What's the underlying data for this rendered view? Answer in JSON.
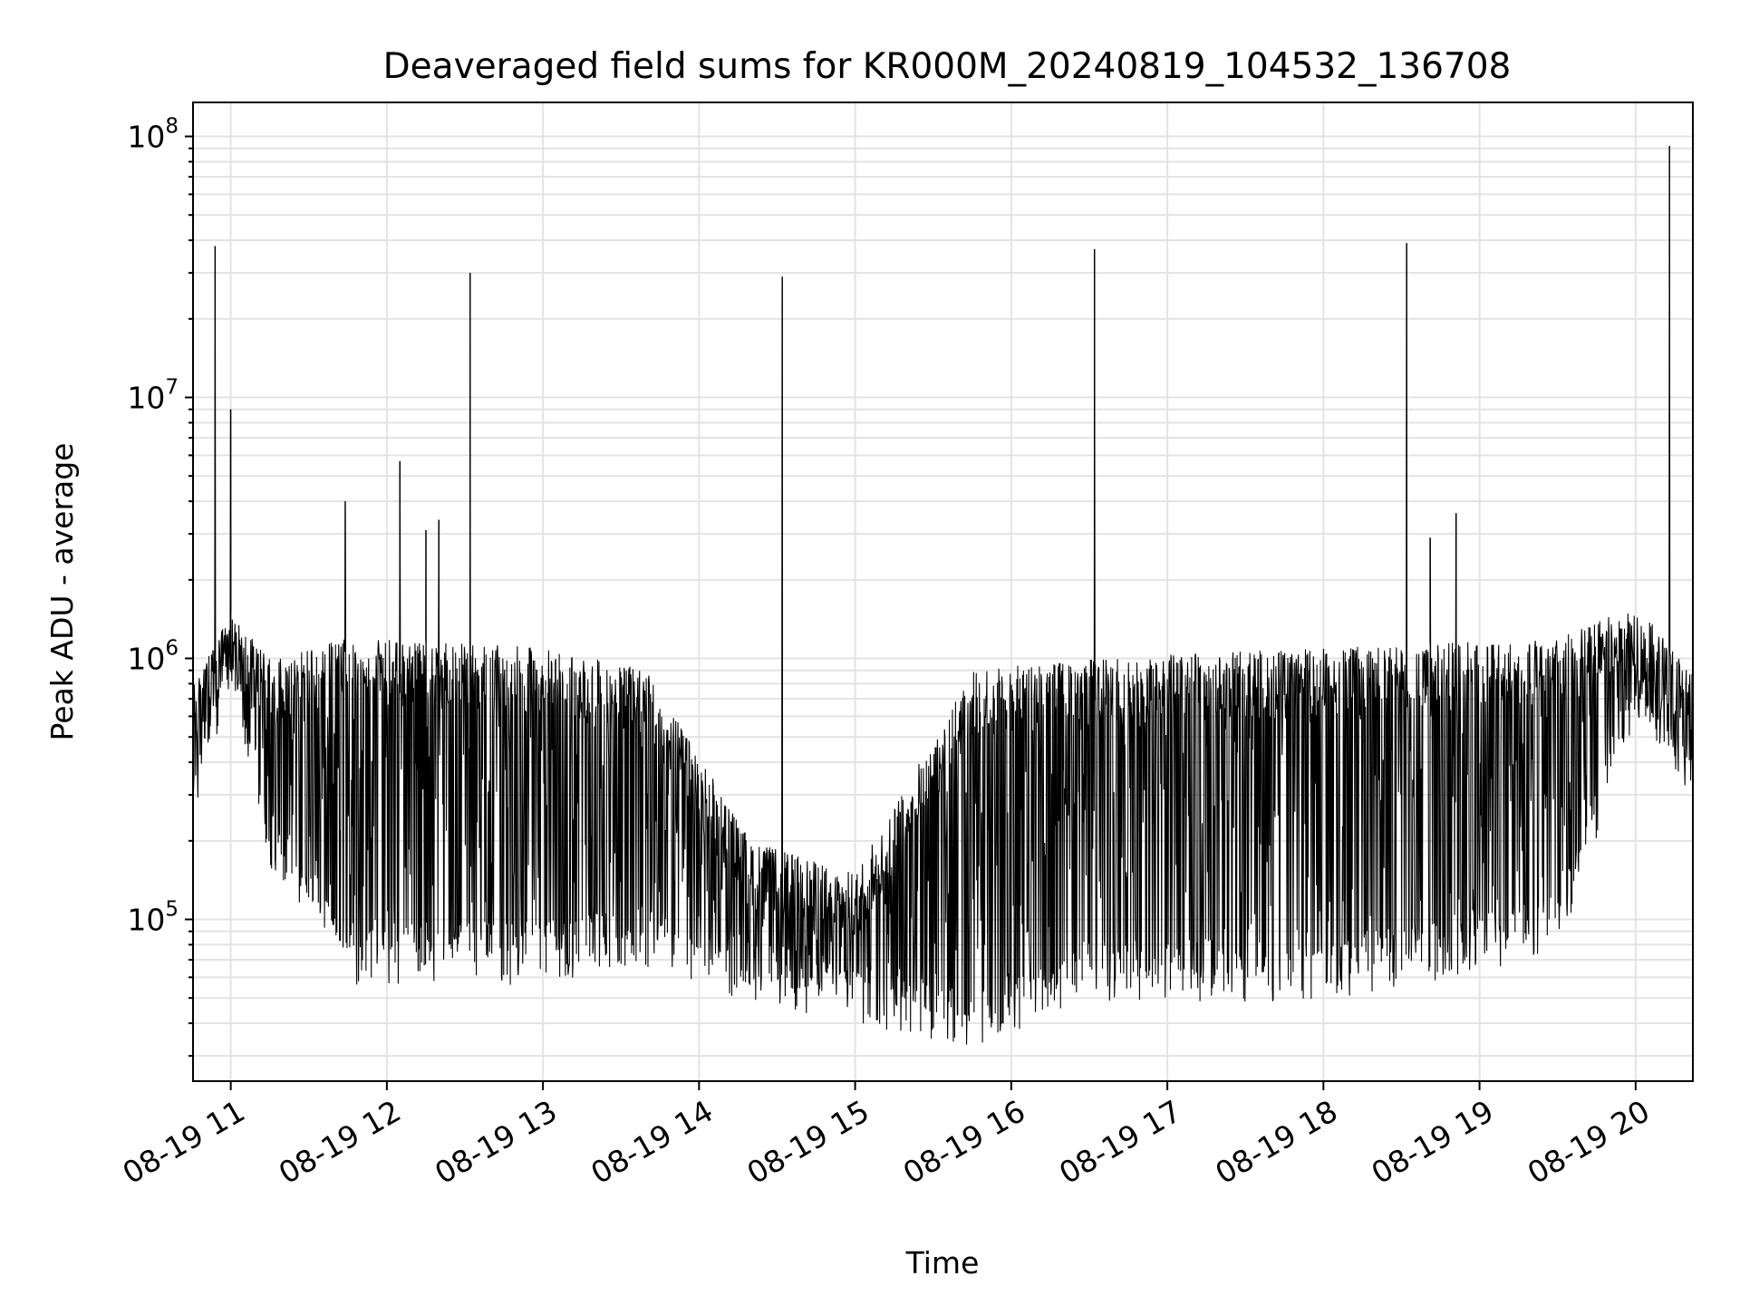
{
  "chart_data": {
    "type": "line",
    "title": "Deaveraged field sums for KR000M_20240819_104532_136708",
    "xlabel": "Time",
    "ylabel": "Peak ADU - average",
    "yscale": "log",
    "ylim": [
      24000,
      135000000
    ],
    "xlim": [
      "2024-08-19 10:45:32",
      "2024-08-19 20:22:00"
    ],
    "grid": true,
    "line_color": "#000000",
    "x_ticks": [
      "08-19 11",
      "08-19 12",
      "08-19 13",
      "08-19 14",
      "08-19 15",
      "08-19 16",
      "08-19 17",
      "08-19 18",
      "08-19 19",
      "08-19 20"
    ],
    "y_ticks": [
      {
        "value": 100000,
        "base": "10",
        "exp": "5"
      },
      {
        "value": 1000000,
        "base": "10",
        "exp": "6"
      },
      {
        "value": 10000000,
        "base": "10",
        "exp": "7"
      },
      {
        "value": 100000000,
        "base": "10",
        "exp": "8"
      }
    ],
    "series": [
      {
        "baseline_profile": {
          "description_points": [
            {
              "t": "10:46",
              "low": 300000,
              "high": 800000
            },
            {
              "t": "11:00",
              "low": 800000,
              "high": 1500000
            },
            {
              "t": "11:15",
              "low": 200000,
              "high": 1000000
            },
            {
              "t": "11:45",
              "low": 70000,
              "high": 1200000
            },
            {
              "t": "13:00",
              "low": 70000,
              "high": 1100000
            },
            {
              "t": "13:40",
              "low": 80000,
              "high": 900000
            },
            {
              "t": "14:20",
              "low": 60000,
              "high": 200000
            },
            {
              "t": "15:00",
              "low": 50000,
              "high": 150000
            },
            {
              "t": "15:45",
              "low": 40000,
              "high": 900000
            },
            {
              "t": "16:30",
              "low": 60000,
              "high": 1000000
            },
            {
              "t": "18:00",
              "low": 60000,
              "high": 1100000
            },
            {
              "t": "19:30",
              "low": 90000,
              "high": 1200000
            },
            {
              "t": "20:00",
              "low": 700000,
              "high": 1600000
            },
            {
              "t": "20:22",
              "low": 300000,
              "high": 900000
            }
          ]
        },
        "spikes": [
          {
            "t": "10:54",
            "value": 38000000
          },
          {
            "t": "11:00",
            "value": 9000000
          },
          {
            "t": "11:44",
            "value": 4000000
          },
          {
            "t": "12:05",
            "value": 5700000
          },
          {
            "t": "12:15",
            "value": 3100000
          },
          {
            "t": "12:20",
            "value": 3400000
          },
          {
            "t": "12:32",
            "value": 30000000
          },
          {
            "t": "14:32",
            "value": 29000000
          },
          {
            "t": "16:32",
            "value": 37000000
          },
          {
            "t": "18:32",
            "value": 39000000
          },
          {
            "t": "18:41",
            "value": 2900000
          },
          {
            "t": "18:51",
            "value": 3600000
          },
          {
            "t": "20:13",
            "value": 92000000
          }
        ]
      }
    ]
  }
}
